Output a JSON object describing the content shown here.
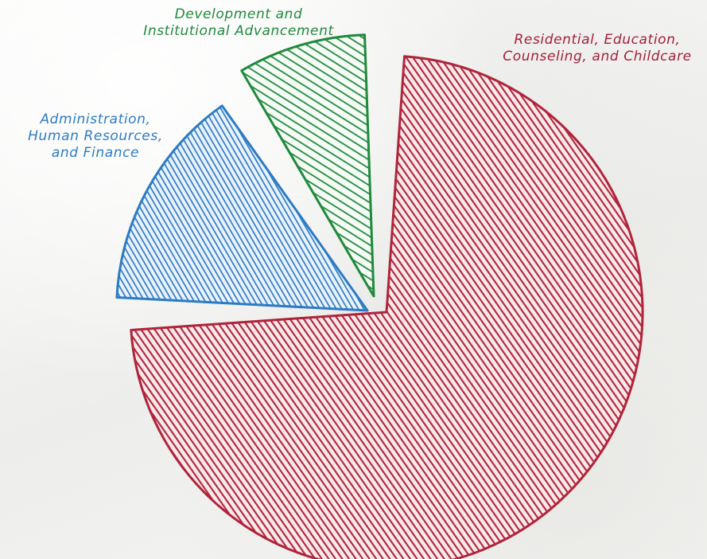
{
  "chart_data": {
    "type": "pie",
    "title": "",
    "slices": [
      {
        "label_lines": [
          "Residential, Education,",
          "Counseling, and Childcare"
        ],
        "value": 75,
        "unit": "%",
        "color": "#b0243a"
      },
      {
        "label_lines": [
          "Administration,",
          "Human Resources,",
          "and Finance"
        ],
        "value": 16,
        "unit": "%",
        "color": "#2d7bc4"
      },
      {
        "label_lines": [
          "Development and",
          "Institutional Advancement"
        ],
        "value": 9,
        "unit": "%",
        "color": "#1f8a3c"
      }
    ],
    "exploded_slices": [
      "Administration, Human Resources, and Finance",
      "Development and Institutional Advancement"
    ],
    "legend": "none",
    "fill_style": "hand-drawn hatching"
  }
}
